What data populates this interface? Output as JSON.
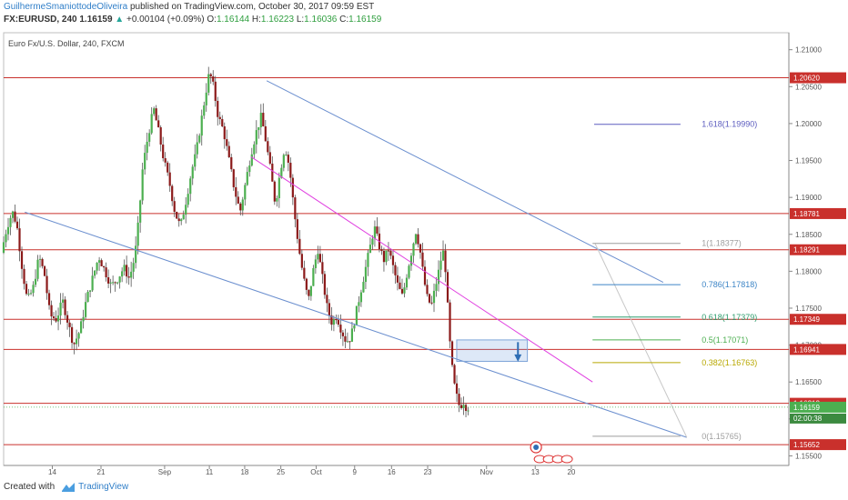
{
  "header": {
    "author": "GuilhermeSmaniottodeOliveira",
    "published_text": "published on TradingView.com, October 30, 2017 09:59 EST",
    "symbol": "FX:EURUSD, 240",
    "last": "1.16159",
    "change": "+0.00104 (+0.09%)",
    "o_label": "O:",
    "o_value": "1.16144",
    "h_label": "H:",
    "h_value": "1.16223",
    "l_label": "L:",
    "l_value": "1.16036",
    "c_label": "C:",
    "c_value": "1.16159"
  },
  "footer": {
    "created_with": "Created with",
    "brand": "TradingView"
  },
  "chart_data": {
    "type": "candlestick",
    "title": "Euro Fx/U.S. Dollar, 240, FXCM",
    "y_range": [
      1.1537,
      1.2123
    ],
    "y_ticks": [
      "1.21000",
      "1.20500",
      "1.20000",
      "1.19500",
      "1.19000",
      "1.18500",
      "1.18000",
      "1.17500",
      "1.17000",
      "1.16500",
      "1.16000",
      "1.15500"
    ],
    "y_tick_values": [
      1.21,
      1.205,
      1.2,
      1.195,
      1.19,
      1.185,
      1.18,
      1.175,
      1.17,
      1.165,
      1.16,
      1.155
    ],
    "x_ticks": [
      {
        "label": "14",
        "t": 0.062
      },
      {
        "label": "21",
        "t": 0.124
      },
      {
        "label": "Sep",
        "t": 0.205
      },
      {
        "label": "11",
        "t": 0.262
      },
      {
        "label": "18",
        "t": 0.307
      },
      {
        "label": "25",
        "t": 0.353
      },
      {
        "label": "Oct",
        "t": 0.398
      },
      {
        "label": "9",
        "t": 0.447
      },
      {
        "label": "16",
        "t": 0.494
      },
      {
        "label": "23",
        "t": 0.54
      },
      {
        "label": "Nov",
        "t": 0.615
      },
      {
        "label": "13",
        "t": 0.677
      },
      {
        "label": "20",
        "t": 0.723
      }
    ],
    "horizontal_levels": [
      1.2062,
      1.18781,
      1.18291,
      1.17349,
      1.16941,
      1.16212,
      1.15652
    ],
    "level_labels": [
      "1.20620",
      "1.18781",
      "1.18291",
      "1.17349",
      "1.16941",
      "1.16212",
      "1.15652"
    ],
    "last_price": {
      "value": 1.16159,
      "label": "1.16159",
      "countdown": "02:00:38"
    },
    "fibonacci": [
      {
        "label": "1(1.18377)",
        "value": 1.18377,
        "color": "#9e9e9e"
      },
      {
        "label": "0.786(1.17818)",
        "value": 1.17818,
        "color": "#3d85c6"
      },
      {
        "label": "0.618(1.17379)",
        "value": 1.17379,
        "color": "#2e9e6e"
      },
      {
        "label": "0.5(1.17071)",
        "value": 1.17071,
        "color": "#4caf50"
      },
      {
        "label": "0.382(1.16763)",
        "value": 1.16763,
        "color": "#b8a800"
      },
      {
        "label": "0(1.15765)",
        "value": 1.15765,
        "color": "#9e9e9e"
      },
      {
        "label": "1.618(1.19990)",
        "value": 1.1999,
        "color": "#5c5cbf"
      }
    ],
    "price_path": [
      [
        0.0,
        1.1825
      ],
      [
        0.005,
        1.185
      ],
      [
        0.01,
        1.187
      ],
      [
        0.015,
        1.188
      ],
      [
        0.02,
        1.186
      ],
      [
        0.027,
        1.18
      ],
      [
        0.033,
        1.176
      ],
      [
        0.04,
        1.1775
      ],
      [
        0.048,
        1.182
      ],
      [
        0.055,
        1.1795
      ],
      [
        0.062,
        1.174
      ],
      [
        0.07,
        1.1735
      ],
      [
        0.078,
        1.176
      ],
      [
        0.085,
        1.173
      ],
      [
        0.092,
        1.17
      ],
      [
        0.1,
        1.172
      ],
      [
        0.108,
        1.176
      ],
      [
        0.116,
        1.179
      ],
      [
        0.124,
        1.182
      ],
      [
        0.132,
        1.18
      ],
      [
        0.14,
        1.178
      ],
      [
        0.148,
        1.179
      ],
      [
        0.156,
        1.1805
      ],
      [
        0.163,
        1.179
      ],
      [
        0.17,
        1.182
      ],
      [
        0.175,
        1.187
      ],
      [
        0.18,
        1.194
      ],
      [
        0.187,
        1.1985
      ],
      [
        0.194,
        1.202
      ],
      [
        0.2,
        1.199
      ],
      [
        0.207,
        1.195
      ],
      [
        0.214,
        1.192
      ],
      [
        0.221,
        1.188
      ],
      [
        0.228,
        1.186
      ],
      [
        0.236,
        1.19
      ],
      [
        0.242,
        1.1935
      ],
      [
        0.248,
        1.196
      ],
      [
        0.254,
        1.2
      ],
      [
        0.26,
        1.204
      ],
      [
        0.265,
        1.207
      ],
      [
        0.27,
        1.205
      ],
      [
        0.276,
        1.201
      ],
      [
        0.283,
        1.199
      ],
      [
        0.29,
        1.195
      ],
      [
        0.297,
        1.191
      ],
      [
        0.304,
        1.188
      ],
      [
        0.311,
        1.192
      ],
      [
        0.318,
        1.196
      ],
      [
        0.325,
        1.199
      ],
      [
        0.331,
        1.201
      ],
      [
        0.337,
        1.1975
      ],
      [
        0.343,
        1.1935
      ],
      [
        0.349,
        1.189
      ],
      [
        0.355,
        1.1935
      ],
      [
        0.361,
        1.197
      ],
      [
        0.367,
        1.194
      ],
      [
        0.373,
        1.188
      ],
      [
        0.379,
        1.183
      ],
      [
        0.385,
        1.179
      ],
      [
        0.391,
        1.176
      ],
      [
        0.397,
        1.18
      ],
      [
        0.403,
        1.183
      ],
      [
        0.409,
        1.179
      ],
      [
        0.415,
        1.175
      ],
      [
        0.421,
        1.173
      ],
      [
        0.427,
        1.174
      ],
      [
        0.433,
        1.172
      ],
      [
        0.439,
        1.1705
      ],
      [
        0.445,
        1.171
      ],
      [
        0.451,
        1.174
      ],
      [
        0.457,
        1.177
      ],
      [
        0.463,
        1.18
      ],
      [
        0.469,
        1.183
      ],
      [
        0.475,
        1.186
      ],
      [
        0.481,
        1.1835
      ],
      [
        0.487,
        1.1815
      ],
      [
        0.493,
        1.183
      ],
      [
        0.499,
        1.1805
      ],
      [
        0.505,
        1.178
      ],
      [
        0.511,
        1.1765
      ],
      [
        0.517,
        1.18
      ],
      [
        0.523,
        1.183
      ],
      [
        0.528,
        1.1855
      ],
      [
        0.533,
        1.183
      ],
      [
        0.538,
        1.179
      ],
      [
        0.543,
        1.176
      ],
      [
        0.548,
        1.1755
      ],
      [
        0.553,
        1.178
      ],
      [
        0.558,
        1.1805
      ],
      [
        0.562,
        1.183
      ],
      [
        0.566,
        1.18
      ],
      [
        0.569,
        1.174
      ],
      [
        0.572,
        1.169
      ],
      [
        0.576,
        1.165
      ],
      [
        0.58,
        1.163
      ],
      [
        0.584,
        1.1615
      ],
      [
        0.588,
        1.1625
      ],
      [
        0.592,
        1.1616
      ]
    ],
    "annotations": {
      "projection_box": {
        "t0": 0.577,
        "t1": 0.667,
        "low": 1.1678,
        "high": 1.1707
      },
      "down_arrow": {
        "t": 0.655,
        "from": 1.1704,
        "to": 1.168
      }
    }
  }
}
